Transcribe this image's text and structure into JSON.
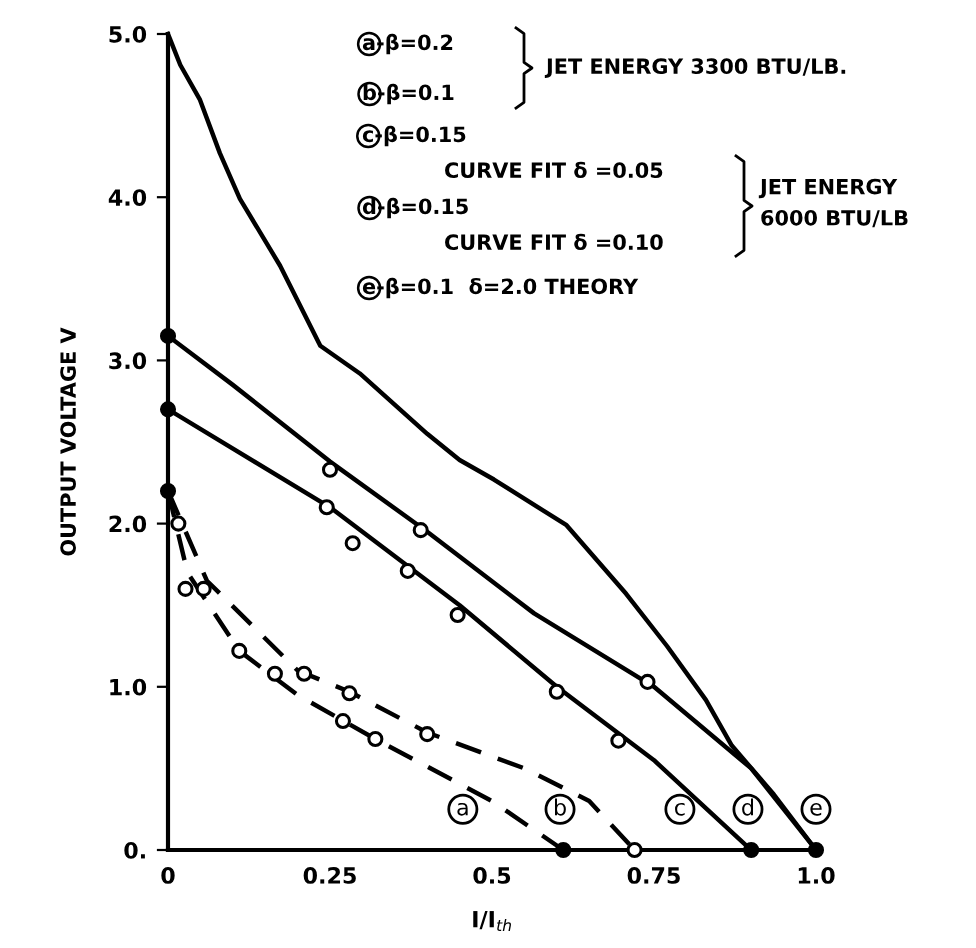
{
  "chart_data": {
    "type": "line",
    "xlabel": "I/I$_{th}$",
    "ylabel": "OUTPUT VOLTAGE V",
    "xlim": [
      0,
      1.0
    ],
    "ylim": [
      0,
      5.0
    ],
    "xticks": [
      0,
      0.25,
      0.5,
      0.75,
      {
        "value": 1.0,
        "label": "1.0"
      }
    ],
    "yticks": [
      {
        "value": 0,
        "label": "0."
      },
      {
        "value": 1.0,
        "label": "1.0"
      },
      {
        "value": 2.0,
        "label": "2.0"
      },
      {
        "value": 3.0,
        "label": "3.0"
      },
      {
        "value": 4.0,
        "label": "4.0"
      },
      {
        "value": 5.0,
        "label": "5.0"
      }
    ],
    "grid": false,
    "legend": false,
    "series": [
      {
        "color": "#000000",
        "line_style": "solid",
        "marker": "none",
        "x": [
          0,
          0.003,
          0.019,
          0.049,
          0.08,
          0.111,
          0.173,
          0.235,
          0.296,
          0.4,
          0.45,
          0.503,
          0.615,
          0.707,
          0.77,
          0.83,
          0.87,
          0.935,
          1.0
        ],
        "values": [
          5.0,
          4.97,
          4.81,
          4.6,
          4.27,
          3.99,
          3.58,
          3.09,
          2.92,
          2.55,
          2.39,
          2.27,
          1.99,
          1.57,
          1.25,
          0.92,
          0.64,
          0.34,
          0
        ]
      },
      {
        "color": "#000000",
        "line_style": "solid",
        "marker": "none",
        "x": [
          0,
          0.1,
          0.25,
          0.4,
          0.565,
          0.75,
          0.9,
          1.0
        ],
        "values": [
          3.15,
          2.85,
          2.38,
          1.95,
          1.45,
          1.0,
          0.5,
          0
        ]
      },
      {
        "color": "#000000",
        "line_style": "solid",
        "marker": "none",
        "x": [
          0,
          0.25,
          0.45,
          0.6,
          0.75,
          0.9
        ],
        "values": [
          2.7,
          2.1,
          1.5,
          1.0,
          0.55,
          0
        ]
      },
      {
        "color": "#000000",
        "line_style": "dashed",
        "marker": "none",
        "x": [
          0,
          0.03,
          0.11,
          0.2,
          0.32,
          0.5,
          0.61
        ],
        "values": [
          2.2,
          1.7,
          1.22,
          0.95,
          0.68,
          0.3,
          0
        ]
      },
      {
        "color": "#000000",
        "line_style": "dashed",
        "marker": "none",
        "x": [
          0,
          0.06,
          0.2,
          0.28,
          0.4,
          0.55,
          0.65,
          0.72
        ],
        "values": [
          2.2,
          1.65,
          1.1,
          0.97,
          0.72,
          0.5,
          0.3,
          0
        ]
      },
      {
        "type": "scatter",
        "color": "#ffffff",
        "marker": "circle",
        "x": [
          0.016,
          0.027,
          0.055,
          0.11,
          0.165,
          0.21,
          0.27,
          0.28,
          0.32,
          0.4,
          0.245,
          0.285,
          0.37,
          0.447,
          0.6,
          0.695,
          0.25,
          0.39,
          0.74,
          0.72
        ],
        "values": [
          2.0,
          1.6,
          1.6,
          1.22,
          1.08,
          1.08,
          0.79,
          0.96,
          0.68,
          0.71,
          2.1,
          1.88,
          1.71,
          1.44,
          0.97,
          0.67,
          2.33,
          1.96,
          1.03,
          0
        ]
      },
      {
        "type": "scatter",
        "color": "#000000",
        "marker": "circle",
        "x": [
          0,
          0,
          0,
          0.61,
          0.9,
          1.0
        ],
        "values": [
          3.15,
          2.7,
          2.2,
          0,
          0,
          0
        ]
      }
    ],
    "annotations": [
      "a",
      "b",
      "c",
      "d",
      "e",
      "a-β=0.2",
      "b-β=0.1",
      "JET ENERGY 3300 BTU/LB.",
      "c-β=0.15",
      "CURVE FIT δ =0.05",
      "d-β=0.15",
      "CURVE FIT δ =0.10",
      "JET ENERGY\n6000 BTU/LB",
      "e-β=0.1  δ=2.0 THEORY"
    ]
  }
}
